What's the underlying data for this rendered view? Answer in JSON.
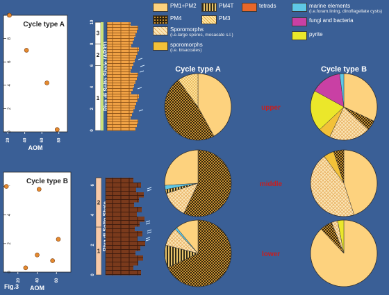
{
  "figure_label": "Fig.3",
  "colors": {
    "background": "#3a5f96",
    "pm1pm2": "#fdd27e",
    "pm4t": "#3a3520",
    "pm4": "#7a5a1a",
    "pm3": "#fbe0a0",
    "tetrads": "#e8672a",
    "sporomorphs": "#f8d9a0",
    "bisaccates": "#f3c138",
    "marine": "#5ec8e6",
    "fungi": "#c940a4",
    "pyrite": "#ebe72a",
    "grey_shale": "#f1a245",
    "black_shale": "#7a3a1c",
    "phase_red": "#c81e1e"
  },
  "legend": [
    {
      "key": "pm1pm2",
      "label": "PM1+PM2",
      "sub": ""
    },
    {
      "key": "pm4t",
      "label": "PM4T",
      "sub": ""
    },
    {
      "key": "tetrads",
      "label": "tetrads",
      "sub": ""
    },
    {
      "key": "marine",
      "label": "marine elements",
      "sub": "(i.e.foram.lining, dinoflagellate cysts)"
    },
    {
      "key": "pm4",
      "label": "PM4",
      "sub": ""
    },
    {
      "key": "pm3",
      "label": "PM3",
      "sub": ""
    },
    {
      "key": "sporomorphs",
      "label": "Sporomorphs",
      "sub": "(i.e.large spores, mosacate s.l.)"
    },
    {
      "key": "fungi",
      "label": "fungi and bacteria",
      "sub": ""
    },
    {
      "key": "bisaccates",
      "label": "sporomorphs",
      "sub": "(i.e. bisaccates)"
    },
    {
      "key": "pyrite",
      "label": "pyrite",
      "sub": ""
    }
  ],
  "chart_data": [
    {
      "type": "line",
      "title": "Cycle type A",
      "xlabel": "AOM",
      "x_ticks": [
        "20",
        "40",
        "60",
        "80"
      ],
      "y_ticks": [
        "0",
        "2",
        "4",
        "6",
        "8",
        "10"
      ],
      "xlim": [
        15,
        90
      ],
      "ylim": [
        0,
        10
      ],
      "points": [
        {
          "x": 22,
          "y": 10
        },
        {
          "x": 42,
          "y": 7
        },
        {
          "x": 66,
          "y": 4.2
        },
        {
          "x": 78,
          "y": 0.2
        }
      ]
    },
    {
      "type": "line",
      "title": "Cycle type B",
      "xlabel": "AOM",
      "x_ticks": [
        "20",
        "40",
        "60"
      ],
      "y_ticks": [
        "0",
        "2",
        "4",
        "6"
      ],
      "xlim": [
        5,
        75
      ],
      "ylim": [
        0,
        7
      ],
      "points": [
        {
          "x": 8,
          "y": 6
        },
        {
          "x": 42,
          "y": 5.8
        },
        {
          "x": 62,
          "y": 2.3
        },
        {
          "x": 40,
          "y": 1.2
        },
        {
          "x": 56,
          "y": 0.8
        },
        {
          "x": 28,
          "y": 0.3
        }
      ]
    },
    {
      "type": "table",
      "title": "Riva di Solto Shale (AR31)",
      "y_ticks": [
        "0",
        "2",
        "4",
        "6",
        "8",
        "10"
      ],
      "ylim": [
        0,
        10
      ],
      "units": [
        {
          "label": "1",
          "from": 0,
          "to": 6
        },
        {
          "label": "2",
          "from": 6,
          "to": 8
        },
        {
          "label": "3",
          "from": 8,
          "to": 10
        }
      ],
      "lithology": "grey-shale"
    },
    {
      "type": "table",
      "title": "Riva di Solto Shale",
      "y_ticks": [
        "0",
        "2",
        "4",
        "6"
      ],
      "ylim": [
        0,
        6.5
      ],
      "units": [
        {
          "label": "1",
          "from": 0,
          "to": 3.2
        },
        {
          "label": "2",
          "from": 3.2,
          "to": 6.5
        }
      ],
      "lithology": "black-shale"
    },
    {
      "type": "pie",
      "title": "Cycle type A",
      "rows": [
        {
          "phase": "upper",
          "slices": [
            {
              "key": "pm1pm2",
              "value": 42
            },
            {
              "key": "pm4",
              "value": 48
            },
            {
              "key": "pm3",
              "value": 10
            }
          ]
        },
        {
          "phase": "middle",
          "slices": [
            {
              "key": "pm4",
              "value": 57
            },
            {
              "key": "sporomorphs",
              "value": 13
            },
            {
              "key": "pm4t",
              "value": 2
            },
            {
              "key": "marine",
              "value": 2
            },
            {
              "key": "pm1pm2",
              "value": 26
            }
          ]
        },
        {
          "phase": "lower",
          "slices": [
            {
              "key": "pm4",
              "value": 68
            },
            {
              "key": "pm4t",
              "value": 11
            },
            {
              "key": "sporomorphs",
              "value": 9
            },
            {
              "key": "marine",
              "value": 1
            },
            {
              "key": "pm1pm2",
              "value": 11
            }
          ]
        }
      ]
    },
    {
      "type": "pie",
      "title": "Cycle type B",
      "rows": [
        {
          "phase": "upper",
          "slices": [
            {
              "key": "pm1pm2",
              "value": 32
            },
            {
              "key": "pm4",
              "value": 5
            },
            {
              "key": "sporomorphs",
              "value": 20
            },
            {
              "key": "bisaccates",
              "value": 6
            },
            {
              "key": "pyrite",
              "value": 20
            },
            {
              "key": "fungi",
              "value": 15
            },
            {
              "key": "marine",
              "value": 2
            }
          ]
        },
        {
          "phase": "middle",
          "slices": [
            {
              "key": "pm1pm2",
              "value": 45
            },
            {
              "key": "sporomorphs",
              "value": 45
            },
            {
              "key": "bisaccates",
              "value": 5
            },
            {
              "key": "pm4",
              "value": 5
            }
          ]
        },
        {
          "phase": "lower",
          "slices": [
            {
              "key": "pm1pm2",
              "value": 88
            },
            {
              "key": "pm4",
              "value": 6
            },
            {
              "key": "sporomorphs",
              "value": 3
            },
            {
              "key": "pyrite",
              "value": 3
            }
          ]
        }
      ]
    }
  ]
}
